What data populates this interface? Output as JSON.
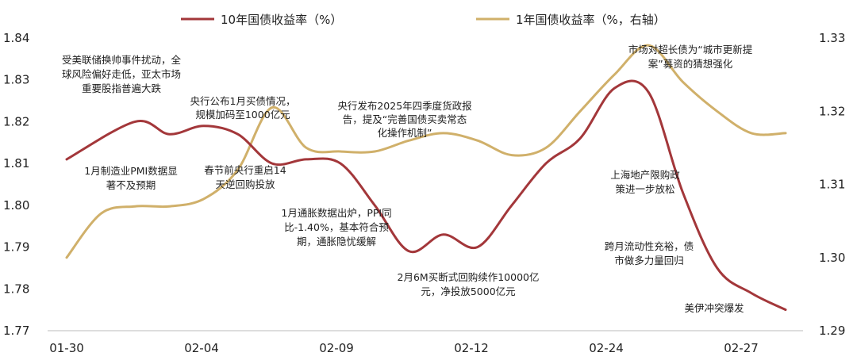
{
  "chart_data": {
    "type": "line",
    "title": "",
    "xlabel": "",
    "ylabel": "",
    "x_tick_labels": [
      "01-30",
      "02-04",
      "02-09",
      "02-12",
      "02-24",
      "02-27"
    ],
    "y_left": {
      "ylim": [
        1.77,
        1.84
      ],
      "ticks": [
        "1.77",
        "1.78",
        "1.79",
        "1.80",
        "1.81",
        "1.82",
        "1.83",
        "1.84"
      ]
    },
    "y_right": {
      "ylim": [
        1.29,
        1.33
      ],
      "ticks": [
        "1.29",
        "1.30",
        "1.31",
        "1.32",
        "1.33"
      ]
    },
    "series": [
      {
        "name": "10年国债收益率（%）",
        "axis": "left",
        "color": "#a3373a",
        "x": [
          0,
          2,
          3,
          4,
          5,
          6,
          7,
          8,
          9,
          10,
          11,
          12,
          13,
          14,
          15,
          16,
          17,
          18,
          19,
          20,
          21
        ],
        "values": [
          1.811,
          1.82,
          1.817,
          1.819,
          1.817,
          1.81,
          1.811,
          1.81,
          1.8,
          1.789,
          1.793,
          1.79,
          1.8,
          1.81,
          1.816,
          1.828,
          1.827,
          1.803,
          1.785,
          1.779,
          1.775
        ]
      },
      {
        "name": "1年国债收益率（%，右轴）",
        "axis": "right",
        "color": "#d0b06a",
        "x": [
          0,
          1,
          2,
          3,
          4,
          5,
          6,
          7,
          8,
          9,
          10,
          11,
          12,
          13,
          14,
          15,
          16,
          17,
          18,
          19,
          20,
          21
        ],
        "values": [
          1.3,
          1.306,
          1.307,
          1.307,
          1.308,
          1.312,
          1.3205,
          1.315,
          1.3145,
          1.3145,
          1.316,
          1.317,
          1.316,
          1.314,
          1.315,
          1.32,
          1.325,
          1.329,
          1.324,
          1.32,
          1.317,
          1.317
        ]
      }
    ],
    "annotations": [
      {
        "lines": [
          "受美联储换帅事件扰动，全",
          "球风险偏好走低，亚太市场",
          "重要股指普遍大跌"
        ]
      },
      {
        "lines": [
          "央行公布1月买债情况，",
          "规模加码至1000亿元"
        ]
      },
      {
        "lines": [
          "央行发布2025年四季度货政报",
          "告，提及“完善国债买卖常态",
          "化操作机制”"
        ]
      },
      {
        "lines": [
          "市场对超长债为“城市更新提",
          "案”募资的猜想强化"
        ]
      },
      {
        "lines": [
          "1月制造业PMI数据显",
          "著不及预期"
        ]
      },
      {
        "lines": [
          "春节前央行重启14",
          "天逆回购投放"
        ]
      },
      {
        "lines": [
          "上海地产限购政",
          "策进一步放松"
        ]
      },
      {
        "lines": [
          "1月通胀数据出炉，PPI同",
          "比-1.40%，基本符合预",
          "期，通胀隐忧缓解"
        ]
      },
      {
        "lines": [
          "跨月流动性充裕，债",
          "市做多力量回归"
        ]
      },
      {
        "lines": [
          "2月6M买断式回购续作10000亿",
          "元，净投放5000亿元"
        ]
      },
      {
        "lines": [
          "美伊冲突爆发"
        ]
      }
    ]
  }
}
